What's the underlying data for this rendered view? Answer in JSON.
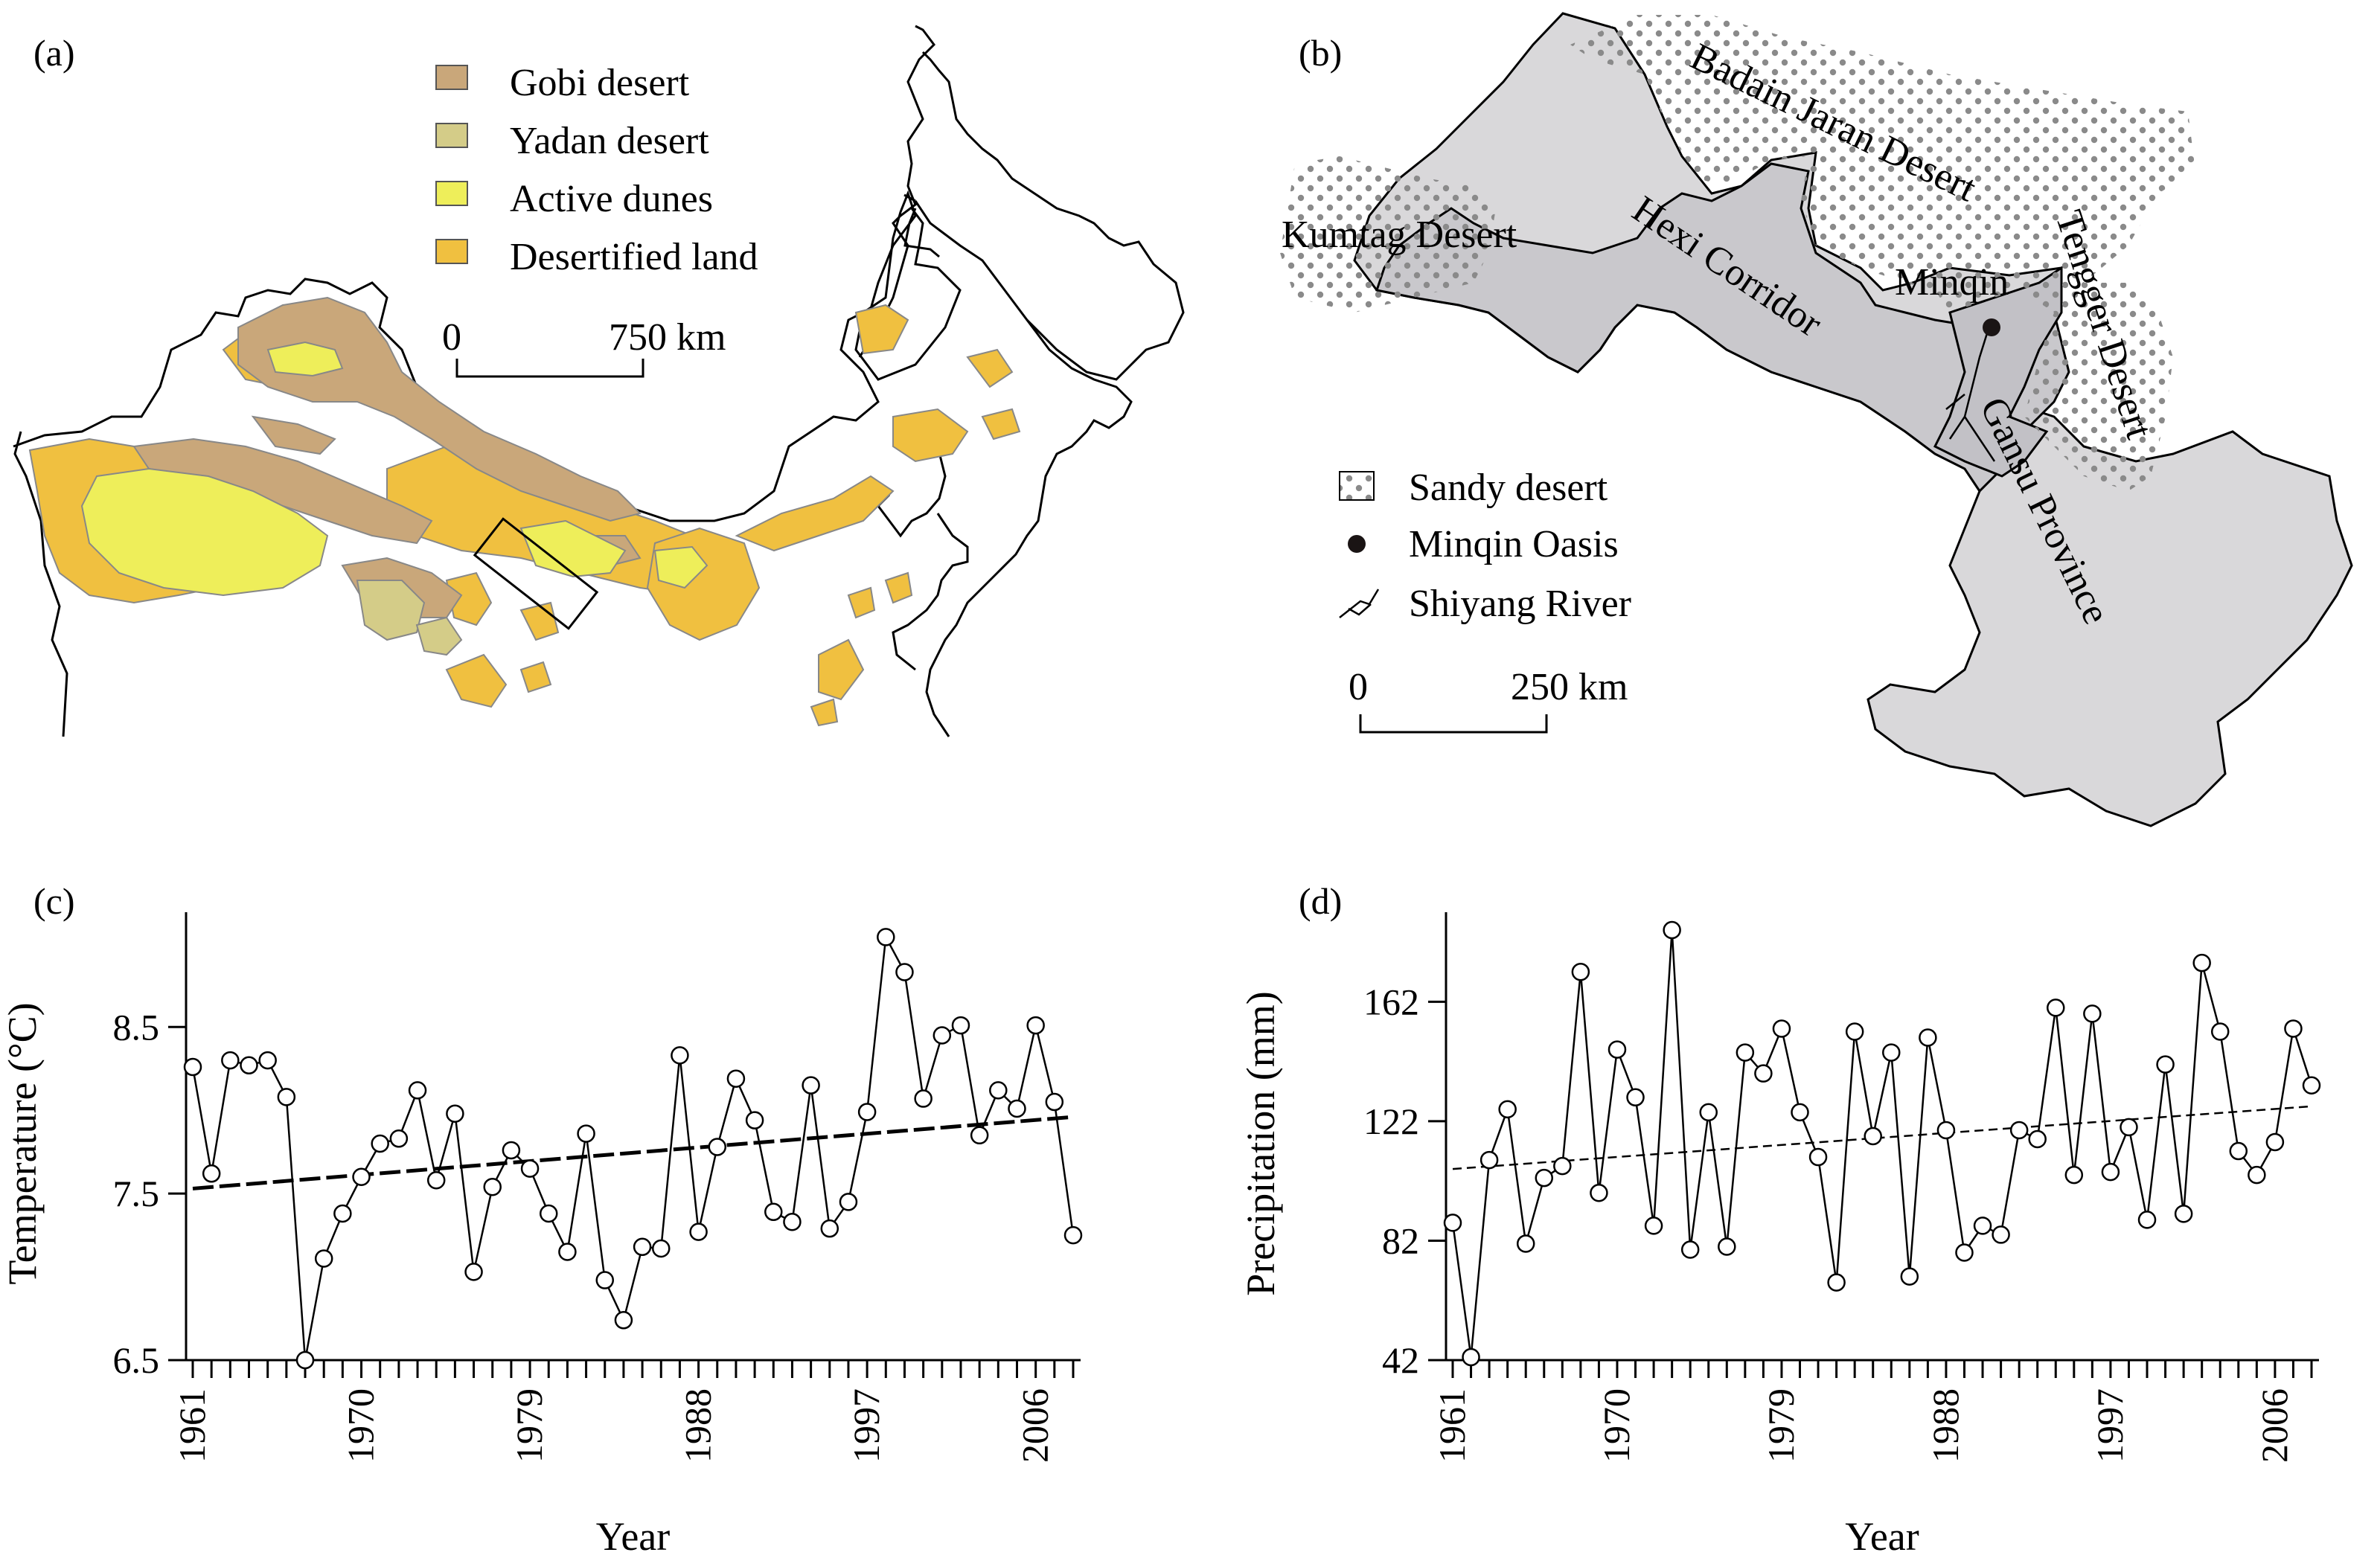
{
  "panels": {
    "a": {
      "label": "(a)",
      "legend": [
        {
          "label": "Gobi desert",
          "color": "#c9a77a"
        },
        {
          "label": "Yadan desert",
          "color": "#d4cc88"
        },
        {
          "label": "Active dunes",
          "color": "#eeee5a"
        },
        {
          "label": "Desertified land",
          "color": "#f0c040"
        }
      ],
      "scale": {
        "start": "0",
        "end": "750 km"
      }
    },
    "b": {
      "label": "(b)",
      "places": {
        "badain": "Badain Jaran Desert",
        "tengger": "Tengger Desert",
        "kumtag": "Kumtag Desert",
        "hexi": "Hexi Corridor",
        "minqin": "Minqin",
        "gansu": "Gansu Province"
      },
      "legend": [
        {
          "label": "Sandy desert",
          "symbol": "dotted-box-icon"
        },
        {
          "label": "Minqin Oasis",
          "symbol": "dot-icon"
        },
        {
          "label": "Shiyang River",
          "symbol": "river-icon"
        }
      ],
      "scale": {
        "start": "0",
        "end": "250 km"
      }
    }
  },
  "chart_data": [
    {
      "panel": "(c)",
      "type": "line",
      "xlabel": "Year",
      "ylabel": "Temperature (°C)",
      "x": [
        1961,
        1962,
        1963,
        1964,
        1965,
        1966,
        1967,
        1968,
        1969,
        1970,
        1971,
        1972,
        1973,
        1974,
        1975,
        1976,
        1977,
        1978,
        1979,
        1980,
        1981,
        1982,
        1983,
        1984,
        1985,
        1986,
        1987,
        1988,
        1989,
        1990,
        1991,
        1992,
        1993,
        1994,
        1995,
        1996,
        1997,
        1998,
        1999,
        2000,
        2001,
        2002,
        2003,
        2004,
        2005,
        2006,
        2007,
        2008
      ],
      "y": [
        8.26,
        7.62,
        8.3,
        8.27,
        8.3,
        8.08,
        6.5,
        7.11,
        7.38,
        7.6,
        7.8,
        7.83,
        8.12,
        7.58,
        7.98,
        7.03,
        7.54,
        7.76,
        7.65,
        7.38,
        7.15,
        7.86,
        6.98,
        6.74,
        7.18,
        7.17,
        8.33,
        7.27,
        7.78,
        8.19,
        7.94,
        7.39,
        7.33,
        8.15,
        7.29,
        7.45,
        7.99,
        9.04,
        8.83,
        8.07,
        8.45,
        8.51,
        7.85,
        8.12,
        8.01,
        8.51,
        8.05,
        7.25
      ],
      "trend": [
        [
          1961,
          7.53
        ],
        [
          2008,
          7.96
        ]
      ],
      "xticks": [
        "1961",
        "1970",
        "1979",
        "1988",
        "1997",
        "2006"
      ],
      "yticks": [
        "6.5",
        "7.5",
        "8.5"
      ],
      "ylim": [
        6.5,
        9.1
      ]
    },
    {
      "panel": "(d)",
      "type": "line",
      "xlabel": "Year",
      "ylabel": "Precipitation (mm)",
      "x": [
        1961,
        1962,
        1963,
        1964,
        1965,
        1966,
        1967,
        1968,
        1969,
        1970,
        1971,
        1972,
        1973,
        1974,
        1975,
        1976,
        1977,
        1978,
        1979,
        1980,
        1981,
        1982,
        1983,
        1984,
        1985,
        1986,
        1987,
        1988,
        1989,
        1990,
        1991,
        1992,
        1993,
        1994,
        1995,
        1996,
        1997,
        1998,
        1999,
        2000,
        2001,
        2002,
        2003,
        2004,
        2005,
        2006,
        2007,
        2008
      ],
      "y": [
        88,
        43,
        109,
        126,
        81,
        103,
        107,
        172,
        98,
        146,
        130,
        87,
        186,
        79,
        125,
        80,
        145,
        138,
        153,
        125,
        110,
        68,
        152,
        117,
        145,
        70,
        150,
        119,
        78,
        87,
        84,
        119,
        116,
        160,
        104,
        158,
        105,
        120,
        89,
        141,
        91,
        175,
        152,
        112,
        104,
        115,
        153,
        134
      ],
      "trend": [
        [
          1961,
          106
        ],
        [
          2008,
          127
        ]
      ],
      "xticks": [
        "1961",
        "1970",
        "1979",
        "1988",
        "1997",
        "2006"
      ],
      "yticks": [
        "42",
        "82",
        "122",
        "162"
      ],
      "ylim": [
        42,
        187
      ]
    }
  ]
}
